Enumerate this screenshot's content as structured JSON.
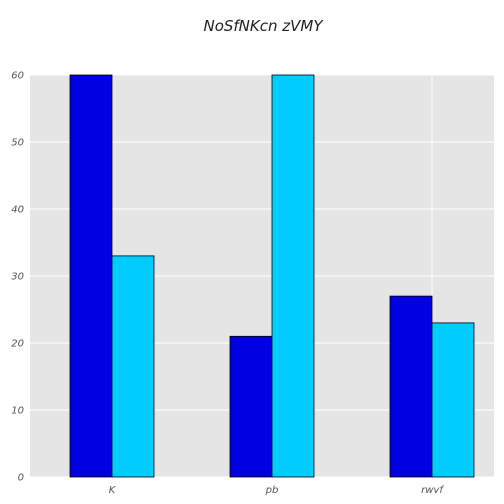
{
  "chart_data": {
    "type": "bar",
    "title": "NoSfNKcn zVMY",
    "xlabel": "",
    "ylabel": "",
    "categories": [
      "K",
      "pb",
      "rwvf"
    ],
    "series": [
      {
        "values": [
          60,
          21,
          27
        ],
        "color": "#0000e0"
      },
      {
        "values": [
          33,
          60,
          23
        ],
        "color": "#00ccff"
      }
    ],
    "ylim": [
      0,
      60
    ],
    "yticks": [
      0,
      10,
      20,
      30,
      40,
      50,
      60
    ],
    "grid": true,
    "background": "#e5e5e5"
  }
}
